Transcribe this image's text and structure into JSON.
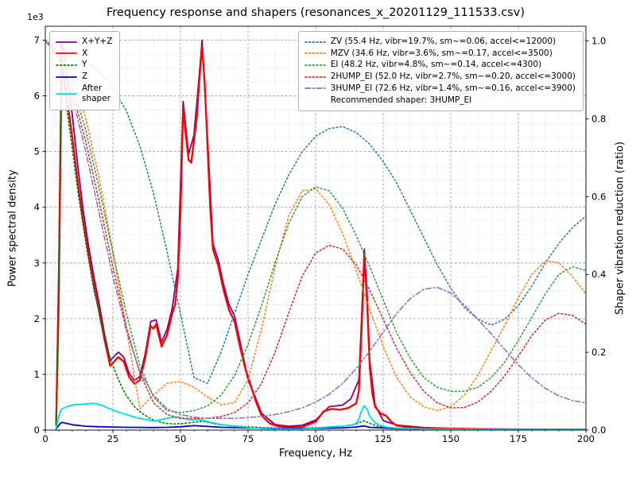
{
  "chart_data": {
    "type": "line",
    "title": "Frequency response and shapers (resonances_x_20201129_111533.csv)",
    "xlabel": "Frequency, Hz",
    "ylabel_left": "Power spectral density",
    "ylabel_right": "Shaper vibration reduction (ratio)",
    "y_left_offset_label": "1e3",
    "legend_note": "Recommended shaper: 3HUMP_EI",
    "x_range": [
      0,
      200
    ],
    "y_left_range": [
      0,
      7250
    ],
    "y_right_range": [
      0,
      1.038
    ],
    "x_ticks": [
      0,
      25,
      50,
      75,
      100,
      125,
      150,
      175,
      200
    ],
    "x_tick_labels": [
      "0",
      "25",
      "50",
      "75",
      "100",
      "125",
      "150",
      "175",
      "200"
    ],
    "y_left_ticks": [
      0,
      1000,
      2000,
      3000,
      4000,
      5000,
      6000,
      7000
    ],
    "y_left_tick_labels": [
      "0",
      "1",
      "2",
      "3",
      "4",
      "5",
      "6",
      "7"
    ],
    "y_right_ticks": [
      0,
      0.2,
      0.4,
      0.6,
      0.8,
      1.0
    ],
    "y_right_tick_labels": [
      "0.0",
      "0.2",
      "0.4",
      "0.6",
      "0.8",
      "1.0"
    ],
    "grid": {
      "major_color": "#9a9a9a",
      "minor_color": "#d4d4d4",
      "x_minor_step": 5,
      "y_minor_step": 250
    },
    "psd_series": [
      {
        "name": "X+Y+Z",
        "display": "X+Y+Z",
        "color": "#800080",
        "style": "solid",
        "width": 1.8,
        "x": [
          4,
          5,
          6,
          7,
          8,
          10,
          12,
          14,
          16,
          18,
          20,
          22,
          24,
          26,
          27,
          29,
          31,
          33,
          35,
          37,
          39,
          41,
          43,
          45,
          47,
          49,
          51,
          53,
          55,
          57,
          58,
          60,
          62,
          64,
          66,
          68,
          70,
          72,
          75,
          78,
          80,
          85,
          90,
          95,
          100,
          105,
          110,
          113,
          116,
          117,
          118,
          119,
          120,
          122,
          125,
          130,
          140,
          150,
          160,
          180,
          200
        ],
        "y": [
          150,
          3000,
          6950,
          6800,
          6350,
          5650,
          4750,
          3950,
          3300,
          2750,
          2250,
          1700,
          1250,
          1350,
          1400,
          1310,
          1020,
          890,
          960,
          1380,
          1950,
          1980,
          1580,
          1800,
          2200,
          2900,
          5900,
          4950,
          5300,
          6400,
          7000,
          5250,
          3350,
          3050,
          2600,
          2250,
          2050,
          1600,
          900,
          550,
          300,
          100,
          70,
          85,
          180,
          420,
          450,
          560,
          900,
          2000,
          3250,
          2500,
          1250,
          450,
          170,
          90,
          45,
          30,
          22,
          14,
          12
        ]
      },
      {
        "name": "X",
        "display": "X",
        "color": "#ff0000",
        "style": "solid",
        "width": 2.3,
        "x": [
          4,
          5,
          6,
          7,
          8,
          10,
          12,
          14,
          16,
          18,
          20,
          22,
          24,
          26,
          27,
          29,
          31,
          33,
          35,
          37,
          38,
          39,
          40,
          41,
          43,
          45,
          47,
          48,
          49,
          50,
          51,
          52,
          53,
          54,
          55,
          56,
          57,
          58,
          59,
          60,
          61,
          62,
          64,
          66,
          68,
          70,
          72,
          74,
          76,
          78,
          80,
          83,
          86,
          90,
          95,
          100,
          103,
          106,
          109,
          112,
          115,
          116,
          117,
          118,
          119,
          120,
          121,
          122,
          124,
          126,
          128,
          130,
          135,
          140,
          150,
          160,
          170,
          180,
          190,
          200
        ],
        "y": [
          100,
          2500,
          6450,
          6350,
          5950,
          5250,
          4450,
          3750,
          3150,
          2600,
          2100,
          1600,
          1150,
          1260,
          1310,
          1230,
          950,
          830,
          900,
          1300,
          1600,
          1870,
          1820,
          1900,
          1500,
          1700,
          2100,
          2250,
          2700,
          3900,
          5800,
          5300,
          4850,
          4800,
          5200,
          5600,
          6300,
          6900,
          6200,
          5100,
          4000,
          3250,
          2950,
          2500,
          2150,
          1950,
          1500,
          1100,
          800,
          500,
          260,
          120,
          70,
          50,
          55,
          150,
          340,
          380,
          365,
          395,
          480,
          700,
          1800,
          3100,
          2350,
          1150,
          650,
          420,
          300,
          260,
          150,
          80,
          45,
          35,
          25,
          18,
          14,
          12,
          11,
          10
        ]
      },
      {
        "name": "Y",
        "display": "Y",
        "color": "#008000",
        "style": "dotted",
        "width": 1.6,
        "x": [
          4,
          5,
          6,
          8,
          10,
          12,
          15,
          18,
          20,
          22,
          25,
          28,
          30,
          33,
          35,
          38,
          40,
          43,
          45,
          48,
          50,
          53,
          55,
          58,
          60,
          63,
          65,
          70,
          75,
          80,
          85,
          90,
          95,
          100,
          105,
          110,
          113,
          115,
          117,
          118,
          120,
          123,
          126,
          130,
          140,
          150,
          160,
          170,
          180,
          190,
          200
        ],
        "y": [
          80,
          2000,
          6600,
          5750,
          5050,
          4300,
          3350,
          2500,
          2100,
          1600,
          1150,
          800,
          620,
          420,
          330,
          230,
          180,
          140,
          120,
          110,
          115,
          130,
          140,
          160,
          140,
          110,
          95,
          75,
          60,
          45,
          35,
          30,
          35,
          45,
          55,
          70,
          90,
          110,
          150,
          170,
          120,
          70,
          45,
          30,
          20,
          15,
          12,
          11,
          10,
          10,
          10
        ]
      },
      {
        "name": "Z",
        "display": "Z",
        "color": "#0000cd",
        "style": "solid",
        "width": 1.8,
        "x": [
          4,
          5,
          6,
          8,
          10,
          15,
          20,
          25,
          30,
          35,
          40,
          45,
          50,
          55,
          60,
          65,
          70,
          80,
          90,
          100,
          110,
          115,
          118,
          120,
          130,
          140,
          150,
          160,
          180,
          200
        ],
        "y": [
          20,
          90,
          140,
          120,
          95,
          70,
          60,
          55,
          50,
          48,
          45,
          50,
          60,
          80,
          65,
          50,
          45,
          30,
          25,
          30,
          40,
          55,
          75,
          50,
          25,
          18,
          15,
          12,
          10,
          10
        ]
      },
      {
        "name": "After shaper",
        "display": "After\nshaper",
        "color": "#00dde0",
        "style": "solid",
        "width": 1.8,
        "x": [
          4,
          5,
          6,
          8,
          10,
          12,
          15,
          18,
          20,
          22,
          25,
          28,
          30,
          33,
          35,
          40,
          43,
          45,
          47,
          49,
          51,
          53,
          55,
          57,
          59,
          61,
          63,
          65,
          70,
          75,
          80,
          85,
          90,
          95,
          100,
          105,
          108,
          110,
          113,
          115,
          116,
          117,
          118,
          119,
          120,
          122,
          124,
          126,
          130,
          135,
          140,
          150,
          160,
          180,
          200
        ],
        "y": [
          30,
          250,
          380,
          420,
          450,
          460,
          470,
          480,
          460,
          420,
          360,
          310,
          280,
          230,
          210,
          160,
          190,
          210,
          230,
          230,
          210,
          190,
          185,
          190,
          170,
          140,
          120,
          100,
          70,
          45,
          25,
          18,
          15,
          20,
          35,
          55,
          65,
          70,
          90,
          120,
          200,
          350,
          440,
          380,
          250,
          130,
          80,
          55,
          35,
          25,
          20,
          15,
          12,
          10,
          10
        ]
      }
    ],
    "shaper_x": [
      0,
      5,
      10,
      15,
      20,
      25,
      30,
      35,
      40,
      45,
      50,
      55,
      60,
      65,
      70,
      75,
      80,
      85,
      90,
      95,
      100,
      105,
      110,
      115,
      120,
      125,
      130,
      135,
      140,
      145,
      150,
      155,
      160,
      165,
      170,
      175,
      180,
      185,
      190,
      195,
      200
    ],
    "shaper_series": [
      {
        "name": "ZV",
        "label": "ZV (55.4 Hz, vibr=19.7%, sm~=0.06, accel<=12000)",
        "color": "#1f77b4",
        "style": "dotted",
        "width": 1.5,
        "y": [
          1.0,
          0.99,
          0.975,
          0.95,
          0.92,
          0.88,
          0.82,
          0.73,
          0.61,
          0.46,
          0.3,
          0.135,
          0.12,
          0.2,
          0.3,
          0.4,
          0.49,
          0.58,
          0.655,
          0.715,
          0.755,
          0.775,
          0.78,
          0.765,
          0.735,
          0.69,
          0.635,
          0.565,
          0.495,
          0.425,
          0.365,
          0.315,
          0.285,
          0.27,
          0.285,
          0.32,
          0.37,
          0.43,
          0.48,
          0.52,
          0.55
        ]
      },
      {
        "name": "MZV",
        "label": "MZV (34.6 Hz, vibr=3.6%, sm~=0.17, accel<=3500)",
        "color": "#ff7f0e",
        "style": "dotted",
        "width": 1.5,
        "y": [
          1.0,
          0.975,
          0.91,
          0.8,
          0.645,
          0.46,
          0.26,
          0.055,
          0.09,
          0.12,
          0.125,
          0.11,
          0.085,
          0.065,
          0.07,
          0.13,
          0.26,
          0.42,
          0.55,
          0.615,
          0.62,
          0.58,
          0.505,
          0.41,
          0.31,
          0.215,
          0.135,
          0.085,
          0.06,
          0.05,
          0.06,
          0.09,
          0.14,
          0.205,
          0.27,
          0.34,
          0.4,
          0.435,
          0.43,
          0.395,
          0.35
        ]
      },
      {
        "name": "EI",
        "label": "EI (48.2 Hz, vibr=4.8%, sm~=0.14, accel<=4300)",
        "color": "#2ca02c",
        "style": "dotted",
        "width": 1.5,
        "y": [
          1.0,
          0.97,
          0.89,
          0.77,
          0.62,
          0.455,
          0.3,
          0.165,
          0.085,
          0.05,
          0.045,
          0.05,
          0.062,
          0.09,
          0.14,
          0.22,
          0.32,
          0.43,
          0.53,
          0.6,
          0.625,
          0.615,
          0.57,
          0.5,
          0.42,
          0.335,
          0.25,
          0.185,
          0.135,
          0.11,
          0.1,
          0.1,
          0.11,
          0.135,
          0.175,
          0.23,
          0.29,
          0.35,
          0.4,
          0.42,
          0.41
        ]
      },
      {
        "name": "2HUMP_EI",
        "label": "2HUMP_EI (52.0 Hz, vibr=2.7%, sm~=0.20, accel<=3000)",
        "color": "#d62728",
        "style": "dotted",
        "width": 1.5,
        "y": [
          1.0,
          0.96,
          0.87,
          0.74,
          0.585,
          0.42,
          0.265,
          0.145,
          0.07,
          0.04,
          0.03,
          0.03,
          0.03,
          0.035,
          0.045,
          0.07,
          0.12,
          0.2,
          0.3,
          0.395,
          0.455,
          0.475,
          0.465,
          0.425,
          0.36,
          0.285,
          0.21,
          0.148,
          0.1,
          0.07,
          0.057,
          0.058,
          0.072,
          0.1,
          0.14,
          0.19,
          0.243,
          0.283,
          0.3,
          0.295,
          0.272
        ]
      },
      {
        "name": "3HUMP_EI",
        "label": "3HUMP_EI (72.6 Hz, vibr=1.4%, sm~=0.16, accel<=3900)",
        "color": "#9467bd",
        "style": "dashdot",
        "width": 1.5,
        "y": [
          1.0,
          0.955,
          0.855,
          0.715,
          0.555,
          0.395,
          0.255,
          0.15,
          0.09,
          0.055,
          0.04,
          0.033,
          0.03,
          0.03,
          0.03,
          0.032,
          0.035,
          0.04,
          0.047,
          0.057,
          0.072,
          0.092,
          0.12,
          0.158,
          0.203,
          0.252,
          0.3,
          0.338,
          0.362,
          0.367,
          0.352,
          0.322,
          0.285,
          0.247,
          0.207,
          0.168,
          0.134,
          0.107,
          0.088,
          0.076,
          0.07
        ]
      }
    ]
  }
}
